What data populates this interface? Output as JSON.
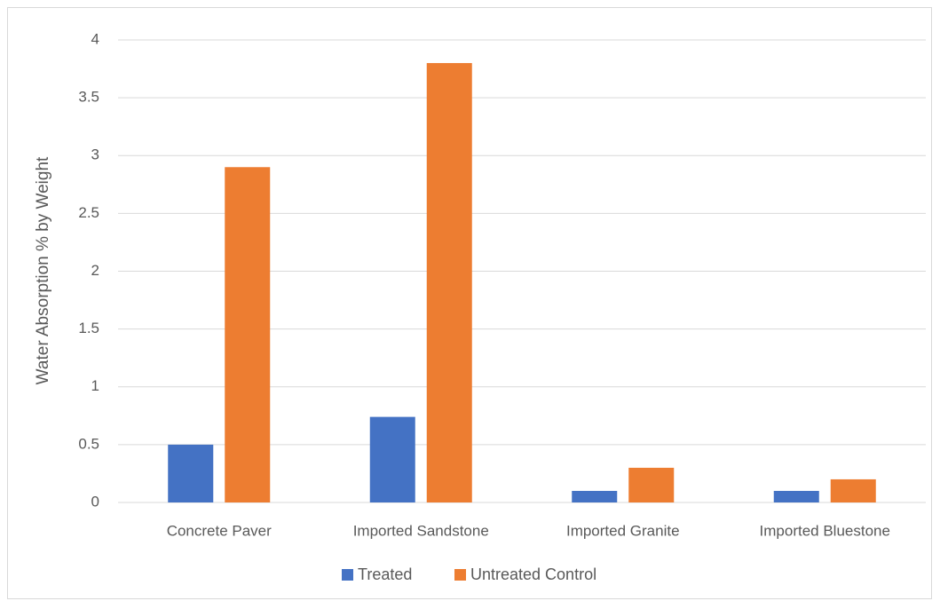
{
  "chart_data": {
    "type": "bar",
    "title": "",
    "xlabel": "",
    "ylabel": "Water Absorption % by Weight",
    "categories": [
      "Concrete Paver",
      "Imported Sandstone",
      "Imported Granite",
      "Imported Bluestone"
    ],
    "series": [
      {
        "name": "Treated",
        "color": "#4472c4",
        "values": [
          0.5,
          0.74,
          0.1,
          0.1
        ]
      },
      {
        "name": "Untreated Control",
        "color": "#ed7d31",
        "values": [
          2.9,
          3.8,
          0.3,
          0.2
        ]
      }
    ],
    "ylim": [
      0,
      4
    ],
    "yticks": [
      "0",
      "0.5",
      "1",
      "1.5",
      "2",
      "2.5",
      "3",
      "3.5",
      "4"
    ],
    "grid": true,
    "legend": "bottom"
  }
}
